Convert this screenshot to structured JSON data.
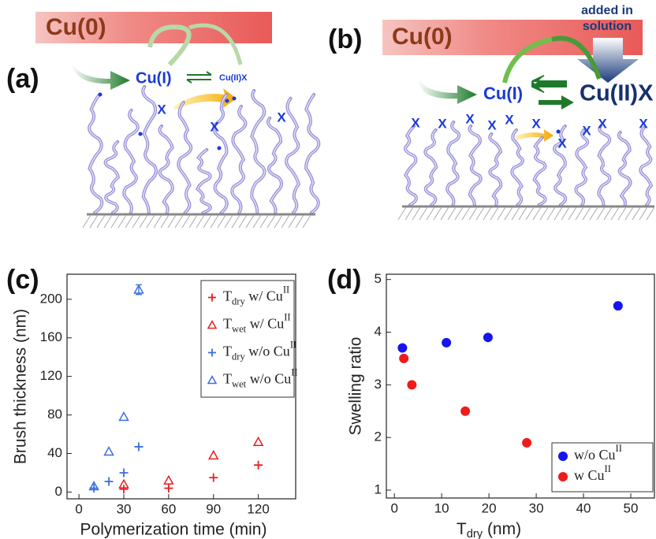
{
  "panels": {
    "a": {
      "label": "(a)",
      "cu0": "Cu(0)",
      "cu1": "Cu(I)",
      "cu2x": "Cu(II)X",
      "x_marks": [
        "X",
        "X",
        "X"
      ]
    },
    "b": {
      "label": "(b)",
      "cu0": "Cu(0)",
      "cu1": "Cu(I)",
      "cu2x": "Cu(II)X",
      "added": [
        "added in",
        "solution"
      ],
      "x_marks": [
        "X",
        "X",
        "X",
        "X",
        "X",
        "X",
        "X",
        "X",
        "X",
        "X"
      ]
    }
  },
  "chart_data": [
    {
      "type": "scatter",
      "panel_label": "(c)",
      "xlabel": "Polymerization time (min)",
      "ylabel": "Brush thickness (nm)",
      "xlim": [
        -8,
        145
      ],
      "ylim": [
        -7,
        226
      ],
      "xticks": [
        0,
        30,
        60,
        90,
        120
      ],
      "yticks": [
        0,
        40,
        80,
        120,
        160,
        200
      ],
      "legend": "upper right",
      "series": [
        {
          "name": {
            "base": "T",
            "sub": "dry",
            "text": " w/ Cu",
            "sup": "II"
          },
          "color": "#e8201f",
          "marker": "plus",
          "x": [
            30,
            60,
            90,
            120
          ],
          "values": [
            3,
            4,
            15,
            28
          ]
        },
        {
          "name": {
            "base": "T",
            "sub": "wet",
            "text": " w/ Cu",
            "sup": "II"
          },
          "color": "#e8201f",
          "marker": "triangle",
          "x": [
            30,
            60,
            90,
            120
          ],
          "values": [
            8,
            12,
            38,
            52
          ]
        },
        {
          "name": {
            "base": "T",
            "sub": "dry",
            "text": " w/o Cu",
            "sup": "II"
          },
          "color": "#3a6fe0",
          "marker": "plus",
          "x": [
            10,
            20,
            30,
            40
          ],
          "values": [
            4,
            11,
            20,
            47
          ]
        },
        {
          "name": {
            "base": "T",
            "sub": "wet",
            "text": " w/o Cu",
            "sup": "II"
          },
          "color": "#3a6fe0",
          "marker": "triangle",
          "x": [
            10,
            20,
            30,
            40
          ],
          "values": [
            6,
            42,
            78,
            210
          ],
          "errors": [
            null,
            null,
            null,
            5
          ]
        }
      ]
    },
    {
      "type": "scatter",
      "panel_label": "(d)",
      "xlabel": {
        "base": "T",
        "sub": "dry",
        "text": " (nm)"
      },
      "ylabel": "Swelling ratio",
      "xlim": [
        -1.7,
        55
      ],
      "ylim": [
        0.85,
        5.1
      ],
      "xticks": [
        0,
        10,
        20,
        30,
        40,
        50
      ],
      "yticks": [
        1,
        2,
        3,
        4,
        5
      ],
      "legend": "lower right",
      "series": [
        {
          "name": {
            "base": "w/o Cu",
            "sup": "II"
          },
          "color": "#1515ee",
          "marker": "circle",
          "x": [
            1.7,
            11,
            19.8,
            47.3
          ],
          "values": [
            3.7,
            3.8,
            3.9,
            4.5
          ]
        },
        {
          "name": {
            "base": "w Cu",
            "sup": "II"
          },
          "color": "#ee1c1c",
          "marker": "circle",
          "x": [
            2,
            3.7,
            15,
            28
          ],
          "values": [
            3.5,
            3.0,
            2.5,
            1.9
          ]
        }
      ]
    }
  ]
}
